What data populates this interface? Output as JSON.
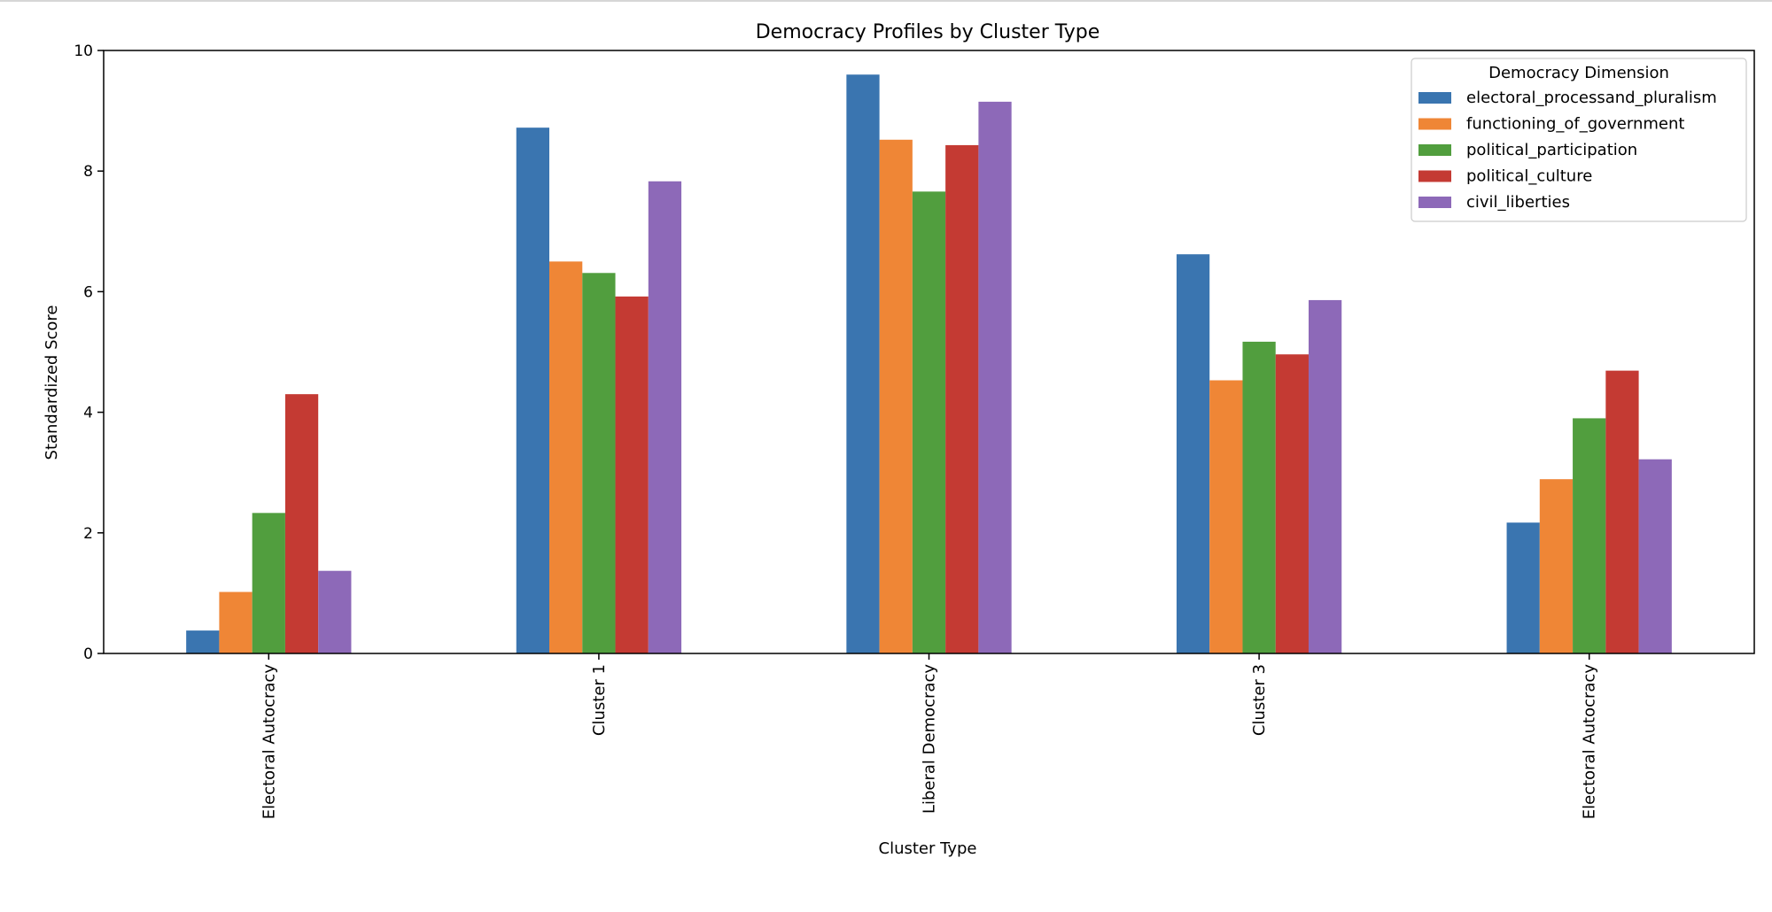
{
  "chart_data": {
    "type": "bar",
    "title": "Democracy Profiles by Cluster Type",
    "xlabel": "Cluster Type",
    "ylabel": "Standardized Score",
    "ylim": [
      0,
      10
    ],
    "yticks": [
      "0",
      "2",
      "4",
      "6",
      "8",
      "10"
    ],
    "grid": false,
    "categories": [
      "Electoral Autocracy",
      "Cluster 1",
      "Liberal Democracy",
      "Cluster 3",
      "Electoral Autocracy"
    ],
    "legend": {
      "title": "Democracy Dimension",
      "placement": "top-right"
    },
    "series": [
      {
        "name": "electoral_processand_pluralism",
        "color": "#3a75b0",
        "values": [
          0.38,
          8.72,
          9.6,
          6.62,
          2.17
        ]
      },
      {
        "name": "functioning_of_government",
        "color": "#ef8636",
        "values": [
          1.02,
          6.5,
          8.52,
          4.53,
          2.89
        ]
      },
      {
        "name": "political_participation",
        "color": "#519e3e",
        "values": [
          2.33,
          6.31,
          7.66,
          5.17,
          3.9
        ]
      },
      {
        "name": "political_culture",
        "color": "#c43a33",
        "values": [
          4.3,
          5.92,
          8.43,
          4.96,
          4.69
        ]
      },
      {
        "name": "civil_liberties",
        "color": "#8d69b8",
        "values": [
          1.37,
          7.83,
          9.15,
          5.86,
          3.22
        ]
      }
    ]
  }
}
